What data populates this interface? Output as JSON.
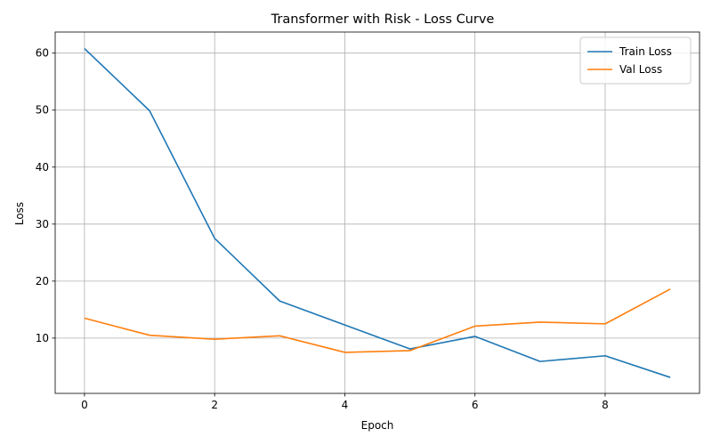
{
  "chart_data": {
    "type": "line",
    "title": "Transformer with Risk - Loss Curve",
    "xlabel": "Epoch",
    "ylabel": "Loss",
    "x": [
      0,
      1,
      2,
      3,
      4,
      5,
      6,
      7,
      8,
      9
    ],
    "xlim": [
      -0.45,
      9.45
    ],
    "ylim": [
      0.3,
      63.7
    ],
    "xticks": [
      0,
      2,
      4,
      6,
      8
    ],
    "yticks": [
      10,
      20,
      30,
      40,
      50,
      60
    ],
    "grid": true,
    "legend": "top-right",
    "series": [
      {
        "name": "Train Loss",
        "color": "#1f77b4",
        "values": [
          60.8,
          49.9,
          27.5,
          16.5,
          12.3,
          8.1,
          10.3,
          5.9,
          6.9,
          3.1
        ]
      },
      {
        "name": "Val Loss",
        "color": "#ff7f0e",
        "values": [
          13.5,
          10.5,
          9.8,
          10.4,
          7.5,
          7.8,
          12.1,
          12.8,
          12.5,
          18.6
        ]
      }
    ]
  }
}
